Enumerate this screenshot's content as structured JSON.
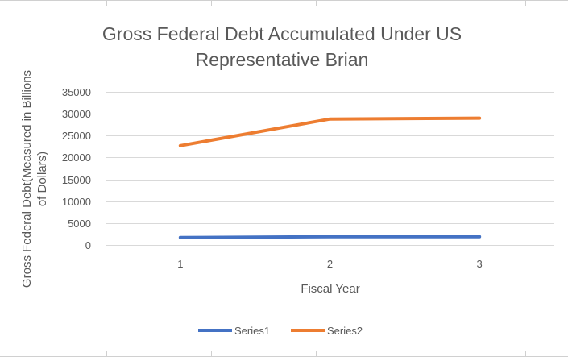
{
  "chart_data": {
    "type": "line",
    "title_lines": [
      "Gross Federal Debt Accumulated Under US",
      "Representative Brian"
    ],
    "xlabel": "Fiscal Year",
    "ylabel_lines": [
      "Gross Federal Debt(Measured in Billions",
      "of Dollars)"
    ],
    "categories": [
      "1",
      "2",
      "3"
    ],
    "y_ticks": [
      "0",
      "5000",
      "10000",
      "15000",
      "20000",
      "25000",
      "30000",
      "35000"
    ],
    "ylim": [
      0,
      35000
    ],
    "grid": true,
    "legend_position": "bottom",
    "series": [
      {
        "name": "Series1",
        "color": "#4472c4",
        "values": [
          1700,
          1900,
          1900
        ]
      },
      {
        "name": "Series2",
        "color": "#ed7d31",
        "values": [
          22700,
          28800,
          29000
        ]
      }
    ]
  }
}
